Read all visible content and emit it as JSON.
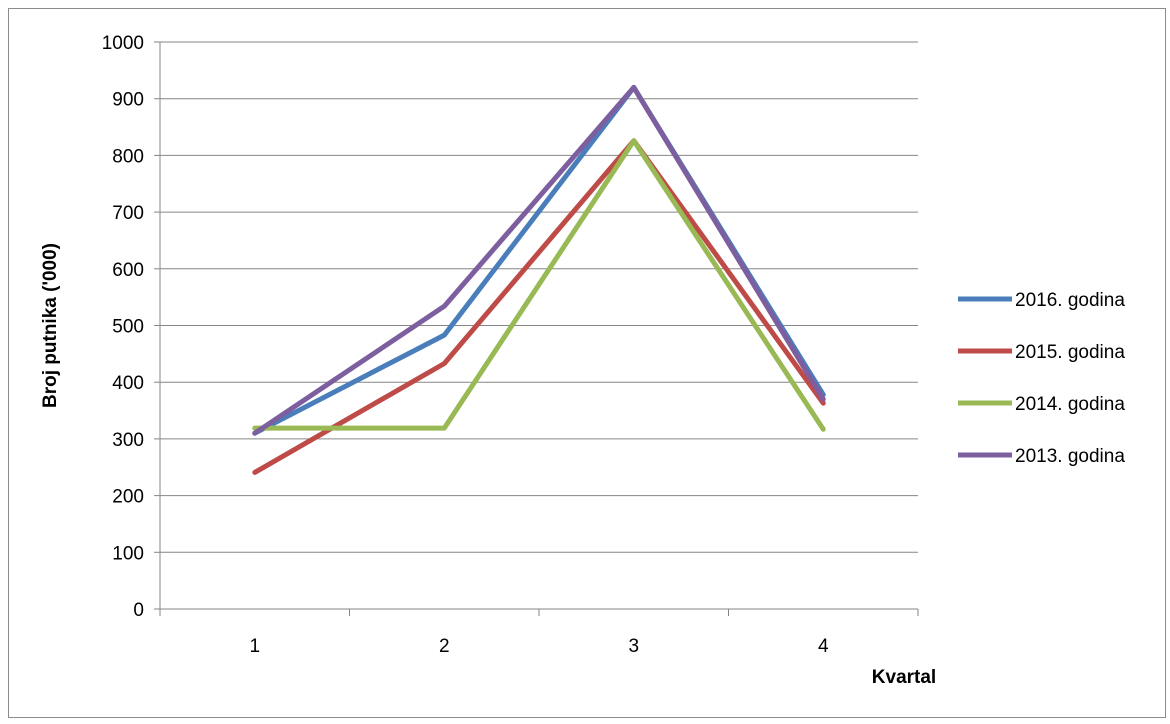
{
  "chart_data": {
    "type": "line",
    "categories": [
      "1",
      "2",
      "3",
      "4"
    ],
    "xlabel": "Kvartal",
    "ylabel": "Broj putnika ('000)",
    "ylim": [
      0,
      1000
    ],
    "yticks": [
      0,
      100,
      200,
      300,
      400,
      500,
      600,
      700,
      800,
      900,
      1000
    ],
    "grid": true,
    "legend_position": "right",
    "series": [
      {
        "name": "2016. godina",
        "color": "#4a7ebb",
        "values": [
          310,
          483,
          920,
          378
        ]
      },
      {
        "name": "2015. godina",
        "color": "#be4b48",
        "values": [
          241,
          433,
          826,
          363
        ]
      },
      {
        "name": "2014. godina",
        "color": "#98b954",
        "values": [
          319,
          319,
          826,
          317
        ]
      },
      {
        "name": "2013. godina",
        "color": "#7d5fa0",
        "values": [
          310,
          534,
          920,
          370
        ]
      }
    ]
  }
}
